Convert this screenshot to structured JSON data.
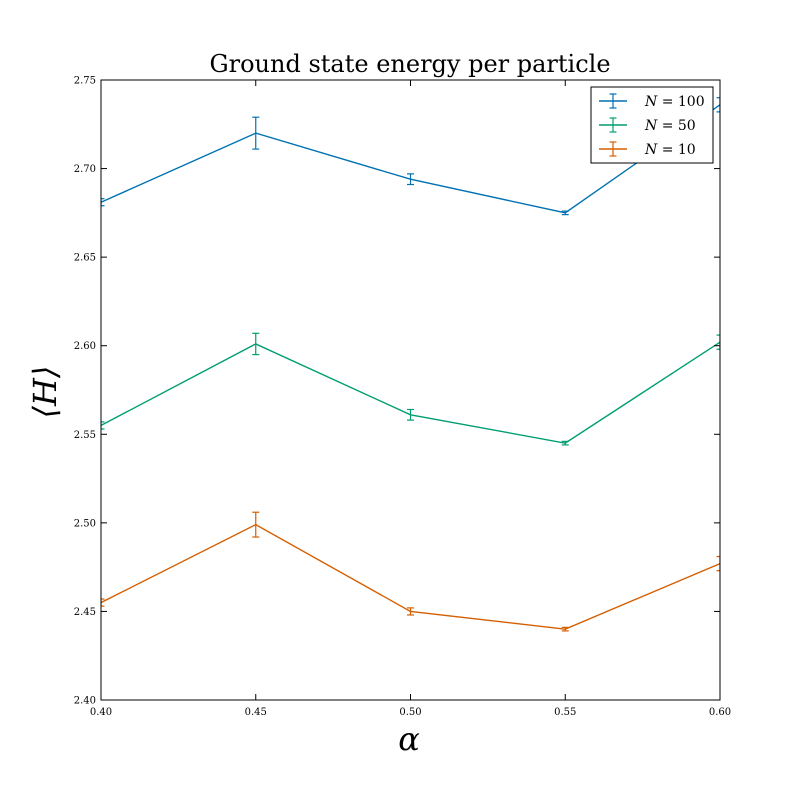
{
  "chart_data": {
    "type": "line",
    "title": "Ground state energy per particle",
    "xlabel": "α",
    "ylabel": "⟨H⟩",
    "xlim": [
      0.4,
      0.6
    ],
    "ylim": [
      2.4,
      2.75
    ],
    "xticks": [
      "0.40",
      "0.45",
      "0.50",
      "0.55",
      "0.60"
    ],
    "yticks": [
      "2.40",
      "2.45",
      "2.50",
      "2.55",
      "2.60",
      "2.65",
      "2.70",
      "2.75"
    ],
    "grid": false,
    "legend_position": "top-right",
    "error_bars": true,
    "x": [
      0.4,
      0.45,
      0.5,
      0.55,
      0.6
    ],
    "series": [
      {
        "name": "N = 100",
        "color": "#0072b2",
        "values": [
          2.681,
          2.72,
          2.694,
          2.675,
          2.736
        ],
        "errors": [
          0.002,
          0.009,
          0.003,
          0.001,
          0.004
        ]
      },
      {
        "name": "N = 50",
        "color": "#009e73",
        "values": [
          2.555,
          2.601,
          2.561,
          2.545,
          2.602
        ],
        "errors": [
          0.002,
          0.006,
          0.003,
          0.001,
          0.004
        ]
      },
      {
        "name": "N = 10",
        "color": "#d55e00",
        "values": [
          2.455,
          2.499,
          2.45,
          2.44,
          2.477
        ],
        "errors": [
          0.002,
          0.007,
          0.002,
          0.001,
          0.004
        ]
      }
    ]
  }
}
